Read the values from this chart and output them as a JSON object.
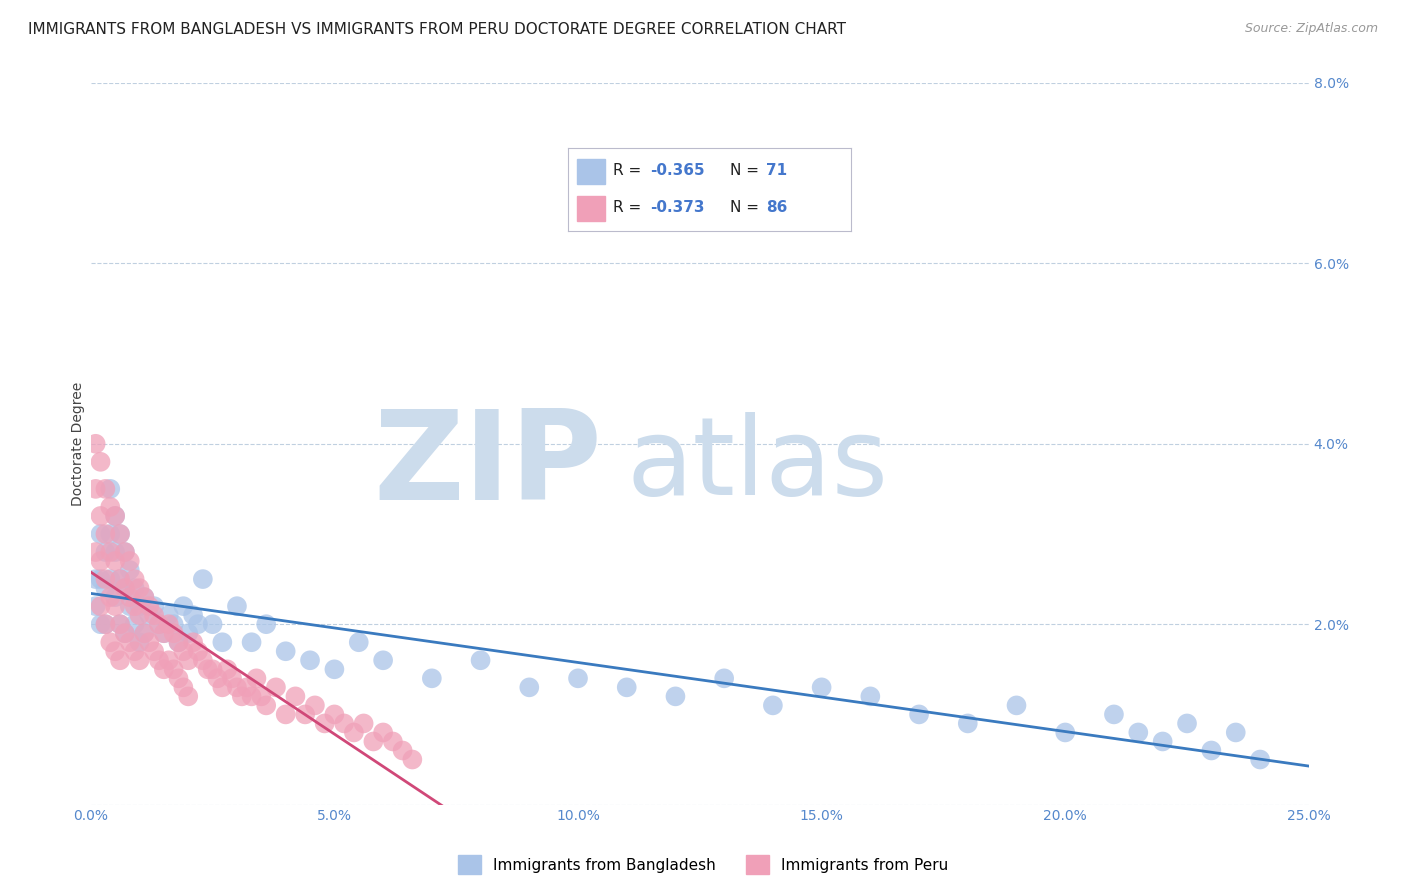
{
  "title": "IMMIGRANTS FROM BANGLADESH VS IMMIGRANTS FROM PERU DOCTORATE DEGREE CORRELATION CHART",
  "source": "Source: ZipAtlas.com",
  "ylabel": "Doctorate Degree",
  "xlim": [
    0.0,
    0.25
  ],
  "ylim": [
    0.0,
    0.08
  ],
  "xticks": [
    0.0,
    0.05,
    0.1,
    0.15,
    0.2,
    0.25
  ],
  "yticks": [
    0.0,
    0.02,
    0.04,
    0.06,
    0.08
  ],
  "xtick_labels": [
    "0.0%",
    "5.0%",
    "10.0%",
    "15.0%",
    "20.0%",
    "25.0%"
  ],
  "ytick_labels_right": [
    "",
    "2.0%",
    "4.0%",
    "6.0%",
    "8.0%"
  ],
  "series": [
    {
      "label": "Immigrants from Bangladesh",
      "R": -0.365,
      "N": 71,
      "color": "#aac4e8",
      "line_color": "#3a7abf",
      "x": [
        0.001,
        0.001,
        0.002,
        0.002,
        0.002,
        0.003,
        0.003,
        0.003,
        0.004,
        0.004,
        0.004,
        0.005,
        0.005,
        0.005,
        0.006,
        0.006,
        0.006,
        0.007,
        0.007,
        0.007,
        0.008,
        0.008,
        0.009,
        0.009,
        0.01,
        0.01,
        0.011,
        0.011,
        0.012,
        0.013,
        0.014,
        0.015,
        0.016,
        0.017,
        0.018,
        0.019,
        0.02,
        0.021,
        0.022,
        0.023,
        0.025,
        0.027,
        0.03,
        0.033,
        0.036,
        0.04,
        0.045,
        0.05,
        0.055,
        0.06,
        0.07,
        0.08,
        0.09,
        0.1,
        0.11,
        0.12,
        0.13,
        0.14,
        0.15,
        0.16,
        0.17,
        0.18,
        0.19,
        0.2,
        0.21,
        0.215,
        0.22,
        0.225,
        0.23,
        0.235,
        0.24
      ],
      "y": [
        0.025,
        0.022,
        0.03,
        0.025,
        0.02,
        0.028,
        0.024,
        0.02,
        0.035,
        0.03,
        0.025,
        0.032,
        0.028,
        0.023,
        0.03,
        0.025,
        0.02,
        0.028,
        0.024,
        0.019,
        0.026,
        0.022,
        0.024,
        0.02,
        0.022,
        0.018,
        0.023,
        0.019,
        0.021,
        0.022,
        0.02,
        0.019,
        0.021,
        0.02,
        0.018,
        0.022,
        0.019,
        0.021,
        0.02,
        0.025,
        0.02,
        0.018,
        0.022,
        0.018,
        0.02,
        0.017,
        0.016,
        0.015,
        0.018,
        0.016,
        0.014,
        0.016,
        0.013,
        0.014,
        0.013,
        0.012,
        0.014,
        0.011,
        0.013,
        0.012,
        0.01,
        0.009,
        0.011,
        0.008,
        0.01,
        0.008,
        0.007,
        0.009,
        0.006,
        0.008,
        0.005
      ]
    },
    {
      "label": "Immigrants from Peru",
      "R": -0.373,
      "N": 86,
      "color": "#f0a0b8",
      "line_color": "#d04878",
      "x": [
        0.001,
        0.001,
        0.001,
        0.002,
        0.002,
        0.002,
        0.002,
        0.003,
        0.003,
        0.003,
        0.003,
        0.004,
        0.004,
        0.004,
        0.004,
        0.005,
        0.005,
        0.005,
        0.005,
        0.006,
        0.006,
        0.006,
        0.006,
        0.007,
        0.007,
        0.007,
        0.008,
        0.008,
        0.008,
        0.009,
        0.009,
        0.009,
        0.01,
        0.01,
        0.01,
        0.011,
        0.011,
        0.012,
        0.012,
        0.013,
        0.013,
        0.014,
        0.014,
        0.015,
        0.015,
        0.016,
        0.016,
        0.017,
        0.017,
        0.018,
        0.018,
        0.019,
        0.019,
        0.02,
        0.02,
        0.021,
        0.022,
        0.023,
        0.024,
        0.025,
        0.026,
        0.027,
        0.028,
        0.029,
        0.03,
        0.031,
        0.032,
        0.033,
        0.034,
        0.035,
        0.036,
        0.038,
        0.04,
        0.042,
        0.044,
        0.046,
        0.048,
        0.05,
        0.052,
        0.054,
        0.056,
        0.058,
        0.06,
        0.062,
        0.064,
        0.066
      ],
      "y": [
        0.04,
        0.035,
        0.028,
        0.038,
        0.032,
        0.027,
        0.022,
        0.035,
        0.03,
        0.025,
        0.02,
        0.033,
        0.028,
        0.023,
        0.018,
        0.032,
        0.027,
        0.022,
        0.017,
        0.03,
        0.025,
        0.02,
        0.016,
        0.028,
        0.024,
        0.019,
        0.027,
        0.023,
        0.018,
        0.025,
        0.022,
        0.017,
        0.024,
        0.021,
        0.016,
        0.023,
        0.019,
        0.022,
        0.018,
        0.021,
        0.017,
        0.02,
        0.016,
        0.019,
        0.015,
        0.02,
        0.016,
        0.019,
        0.015,
        0.018,
        0.014,
        0.017,
        0.013,
        0.016,
        0.012,
        0.018,
        0.017,
        0.016,
        0.015,
        0.015,
        0.014,
        0.013,
        0.015,
        0.014,
        0.013,
        0.012,
        0.013,
        0.012,
        0.014,
        0.012,
        0.011,
        0.013,
        0.01,
        0.012,
        0.01,
        0.011,
        0.009,
        0.01,
        0.009,
        0.008,
        0.009,
        0.007,
        0.008,
        0.007,
        0.006,
        0.005
      ]
    }
  ],
  "watermark_zip": "ZIP",
  "watermark_atlas": "atlas",
  "watermark_color": "#ccdcec",
  "bg_color": "#ffffff",
  "grid_color": "#c0d0e0",
  "title_fontsize": 11,
  "axis_label_fontsize": 10,
  "tick_fontsize": 10,
  "legend_fontsize": 11
}
